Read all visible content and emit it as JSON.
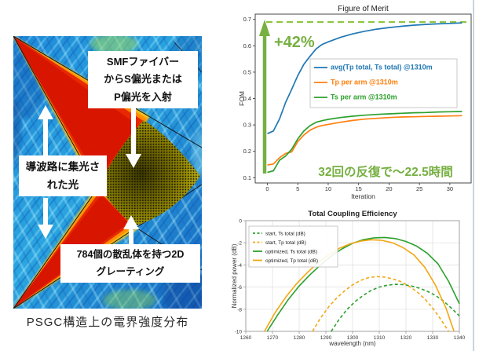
{
  "page": {
    "background": "#ffffff"
  },
  "left_figure": {
    "caption": "PSGC構造上の電界強度分布",
    "label_smf": "SMFファイバー\nからS偏光または\nP偏光を入射",
    "label_waveguide": "導波路に集光さ\nれた光",
    "label_grating": "784個の散乱体を持つ2D\nグレーティング"
  },
  "chart_data": [
    {
      "type": "line",
      "title": "Figure of Merit",
      "xlabel": "Iteration",
      "ylabel": "FOM",
      "xlim": [
        -2,
        33.5
      ],
      "ylim": [
        0.08,
        0.72
      ],
      "xticks": [
        0,
        5,
        10,
        15,
        20,
        25,
        30
      ],
      "yticks": [
        0.1,
        0.2,
        0.3,
        0.4,
        0.5,
        0.6,
        0.7
      ],
      "grid": false,
      "legend_position": "center right",
      "annotation_color": "#76b041",
      "reference_line": {
        "y": 0.69,
        "style": "dashed",
        "color": "#8cc63f"
      },
      "annotations": [
        {
          "text": "+42%"
        },
        {
          "text": "32回の反復で〜22.5時間"
        }
      ],
      "x": [
        0,
        1,
        2,
        3,
        4,
        5,
        6,
        7,
        8,
        9,
        10,
        12,
        14,
        16,
        18,
        20,
        22,
        24,
        26,
        28,
        30,
        32
      ],
      "series": [
        {
          "name": "avg(Tp total, Ts total) @1310m",
          "color": "#1f77b4",
          "style": "solid",
          "y": [
            0.267,
            0.277,
            0.323,
            0.385,
            0.435,
            0.487,
            0.53,
            0.56,
            0.588,
            0.605,
            0.615,
            0.632,
            0.645,
            0.655,
            0.663,
            0.669,
            0.674,
            0.678,
            0.681,
            0.683,
            0.685,
            0.687
          ]
        },
        {
          "name": "Tp per arm @1310m",
          "color": "#ff7f0e",
          "style": "solid",
          "y": [
            0.148,
            0.152,
            0.176,
            0.192,
            0.198,
            0.237,
            0.262,
            0.28,
            0.291,
            0.298,
            0.302,
            0.31,
            0.317,
            0.322,
            0.325,
            0.328,
            0.33,
            0.331,
            0.332,
            0.333,
            0.334,
            0.335
          ]
        },
        {
          "name": "Ts per arm @1310m",
          "color": "#2ca02c",
          "style": "solid",
          "y": [
            0.12,
            0.126,
            0.166,
            0.182,
            0.208,
            0.247,
            0.277,
            0.297,
            0.31,
            0.316,
            0.321,
            0.328,
            0.333,
            0.337,
            0.34,
            0.342,
            0.344,
            0.346,
            0.347,
            0.349,
            0.35,
            0.351
          ]
        }
      ]
    },
    {
      "type": "line",
      "title": "Total Coupling Efficiency",
      "xlabel": "wavelength (nm)",
      "ylabel": "Normalized power (dB)",
      "xlim": [
        1260,
        1340
      ],
      "ylim": [
        -10,
        0
      ],
      "xticks": [
        1260,
        1270,
        1280,
        1290,
        1300,
        1310,
        1320,
        1330,
        1340
      ],
      "yticks": [
        0,
        -2,
        -4,
        -6,
        -8,
        -10
      ],
      "grid": true,
      "legend_position": "upper left",
      "series": [
        {
          "name": "start, Ts total (dB)",
          "color": "#2ca02c",
          "style": "dashed",
          "x": [
            1292,
            1295,
            1298,
            1301,
            1304,
            1307,
            1310,
            1313,
            1316,
            1319,
            1322,
            1325,
            1328,
            1331,
            1334,
            1337,
            1340
          ],
          "y": [
            -10,
            -8.9,
            -8.0,
            -7.3,
            -6.75,
            -6.3,
            -6.0,
            -5.83,
            -5.75,
            -5.78,
            -5.9,
            -6.1,
            -6.38,
            -6.75,
            -7.25,
            -7.9,
            -8.6
          ]
        },
        {
          "name": "start, Tp total (dB)",
          "color": "#f3a712",
          "style": "dashed",
          "x": [
            1285,
            1288,
            1291,
            1294,
            1297,
            1300,
            1303,
            1306,
            1309,
            1312,
            1315,
            1318,
            1321,
            1324,
            1327,
            1330,
            1333,
            1336
          ],
          "y": [
            -10,
            -8.8,
            -7.8,
            -7.0,
            -6.35,
            -5.8,
            -5.4,
            -5.15,
            -5.05,
            -5.1,
            -5.25,
            -5.5,
            -5.9,
            -6.4,
            -7.05,
            -7.9,
            -8.9,
            -10
          ]
        },
        {
          "name": "optimized, Ts total (dB)",
          "color": "#2ca02c",
          "style": "solid",
          "x": [
            1268,
            1272,
            1276,
            1280,
            1284,
            1288,
            1292,
            1296,
            1300,
            1304,
            1308,
            1312,
            1316,
            1320,
            1324,
            1328,
            1332,
            1336,
            1340
          ],
          "y": [
            -10,
            -8.5,
            -7.1,
            -5.9,
            -4.9,
            -4.0,
            -3.2,
            -2.55,
            -2.05,
            -1.72,
            -1.55,
            -1.52,
            -1.62,
            -1.88,
            -2.3,
            -2.95,
            -3.9,
            -5.5,
            -7.5
          ]
        },
        {
          "name": "optimized, Tp total (dB)",
          "color": "#f3a712",
          "style": "solid",
          "x": [
            1267,
            1271,
            1275,
            1279,
            1283,
            1287,
            1291,
            1295,
            1299,
            1303,
            1307,
            1311,
            1315,
            1319,
            1323,
            1327,
            1331,
            1335,
            1338
          ],
          "y": [
            -10,
            -8.3,
            -6.9,
            -5.7,
            -4.7,
            -3.8,
            -3.1,
            -2.5,
            -2.1,
            -1.85,
            -1.72,
            -1.78,
            -2.0,
            -2.45,
            -3.1,
            -4.2,
            -5.8,
            -7.9,
            -10
          ]
        }
      ]
    }
  ]
}
